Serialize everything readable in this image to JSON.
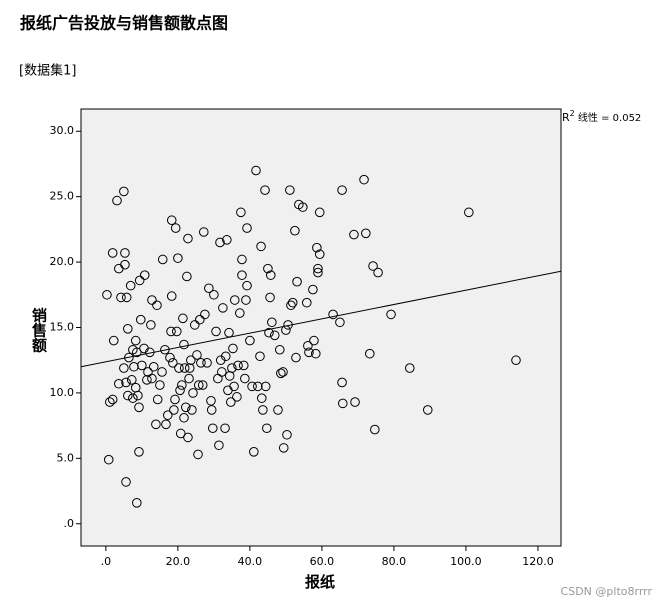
{
  "chart_data": {
    "type": "scatter",
    "title": "报纸广告投放与销售额散点图",
    "dataset_label": "[数据集1]",
    "x_label": "报纸",
    "y_label": "销售额",
    "fit_label": {
      "main": "R",
      "sup": "2",
      "rest": " 线性 = 0.052"
    },
    "xlim": [
      -6.9,
      126.4
    ],
    "ylim": [
      -1.7,
      31.7
    ],
    "xticks": [
      {
        "value": 0,
        "label": ".0"
      },
      {
        "value": 20,
        "label": "20.0"
      },
      {
        "value": 40,
        "label": "40.0"
      },
      {
        "value": 60,
        "label": "60.0"
      },
      {
        "value": 80,
        "label": "80.0"
      },
      {
        "value": 100,
        "label": "100.0"
      },
      {
        "value": 120,
        "label": "120.0"
      }
    ],
    "yticks": [
      {
        "value": 0,
        "label": ".0"
      },
      {
        "value": 5,
        "label": "5.0"
      },
      {
        "value": 10,
        "label": "10.0"
      },
      {
        "value": 15,
        "label": "15.0"
      },
      {
        "value": 20,
        "label": "20.0"
      },
      {
        "value": 25,
        "label": "25.0"
      },
      {
        "value": 30,
        "label": "30.0"
      }
    ],
    "grid": false,
    "color": "#000000",
    "plot_background": "#f0f0f0",
    "fit_line": {
      "x": [
        -6.9,
        126.4
      ],
      "y": [
        12.0,
        19.3
      ]
    },
    "x": [
      0.3,
      0.8,
      1.1,
      1.9,
      2.2,
      1.9,
      3.1,
      3.6,
      4.2,
      3.6,
      5.0,
      5.3,
      5.3,
      5.0,
      5.6,
      5.6,
      5.8,
      6.1,
      6.4,
      6.1,
      6.9,
      7.2,
      7.5,
      7.5,
      7.8,
      8.3,
      8.3,
      8.6,
      8.6,
      8.9,
      9.2,
      9.2,
      9.4,
      9.7,
      10.0,
      10.6,
      10.8,
      11.4,
      11.7,
      12.2,
      12.5,
      12.8,
      12.8,
      13.3,
      13.9,
      14.2,
      14.4,
      15.0,
      15.6,
      15.8,
      16.4,
      16.7,
      17.2,
      17.8,
      18.1,
      18.3,
      18.3,
      18.6,
      18.9,
      19.2,
      19.4,
      19.7,
      20.0,
      20.3,
      20.6,
      20.8,
      21.1,
      21.4,
      21.7,
      21.7,
      21.9,
      22.2,
      22.5,
      22.8,
      22.8,
      23.1,
      23.3,
      23.6,
      23.9,
      24.2,
      24.7,
      25.3,
      25.6,
      25.8,
      26.1,
      26.4,
      26.9,
      27.2,
      27.5,
      28.1,
      28.6,
      29.2,
      29.4,
      29.7,
      30.0,
      30.6,
      31.1,
      31.4,
      31.7,
      31.9,
      32.2,
      32.5,
      33.1,
      33.3,
      33.6,
      33.9,
      34.2,
      34.4,
      34.7,
      35.0,
      35.3,
      35.6,
      35.8,
      36.4,
      36.7,
      37.2,
      37.5,
      37.8,
      37.8,
      38.3,
      38.6,
      39.2,
      38.9,
      39.2,
      40.0,
      40.6,
      41.1,
      41.7,
      42.2,
      42.8,
      43.1,
      43.3,
      43.6,
      44.2,
      44.4,
      44.7,
      45.0,
      45.3,
      45.6,
      45.8,
      46.1,
      46.9,
      47.8,
      48.3,
      48.6,
      49.2,
      49.4,
      50.0,
      50.3,
      50.6,
      51.1,
      51.4,
      51.9,
      52.5,
      52.8,
      53.1,
      53.6,
      54.7,
      55.8,
      56.1,
      56.4,
      57.5,
      57.8,
      58.3,
      58.6,
      58.9,
      58.9,
      59.4,
      59.4,
      63.1,
      65.0,
      65.6,
      65.6,
      65.8,
      68.9,
      69.2,
      71.7,
      72.2,
      73.3,
      74.2,
      74.7,
      75.6,
      79.2,
      84.4,
      89.4,
      100.8,
      113.9
    ],
    "values": [
      17.5,
      4.9,
      9.3,
      20.7,
      14.0,
      9.5,
      24.7,
      19.5,
      17.3,
      10.7,
      25.4,
      20.7,
      19.8,
      11.9,
      10.8,
      3.2,
      17.3,
      14.9,
      12.7,
      9.8,
      18.2,
      11.0,
      9.6,
      13.3,
      12.0,
      10.4,
      14.0,
      13.1,
      1.6,
      9.8,
      5.5,
      8.9,
      18.6,
      15.6,
      12.1,
      13.4,
      19.0,
      11.0,
      11.6,
      13.1,
      15.2,
      17.1,
      11.1,
      12.0,
      7.6,
      16.7,
      9.5,
      10.6,
      11.6,
      20.2,
      13.3,
      7.6,
      8.3,
      12.7,
      14.7,
      23.2,
      17.4,
      12.3,
      8.7,
      9.5,
      22.6,
      14.7,
      20.3,
      11.9,
      10.2,
      6.9,
      10.6,
      15.7,
      13.7,
      8.1,
      11.9,
      8.9,
      18.9,
      21.8,
      6.6,
      11.1,
      11.9,
      12.5,
      8.7,
      10.0,
      15.2,
      12.9,
      5.3,
      10.6,
      15.6,
      12.3,
      10.6,
      22.3,
      16.0,
      12.3,
      18.0,
      9.4,
      8.7,
      7.3,
      17.5,
      14.7,
      11.1,
      6.0,
      21.5,
      12.5,
      11.6,
      16.5,
      7.3,
      12.8,
      21.7,
      10.2,
      14.6,
      11.3,
      9.3,
      11.9,
      13.4,
      10.5,
      17.1,
      9.7,
      12.1,
      16.1,
      23.8,
      20.2,
      19.0,
      12.1,
      11.1,
      22.6,
      17.1,
      18.2,
      14.0,
      10.5,
      5.5,
      27.0,
      10.5,
      12.8,
      21.2,
      9.6,
      8.7,
      25.5,
      10.5,
      7.3,
      19.5,
      14.6,
      17.3,
      19.0,
      15.4,
      14.4,
      8.7,
      13.3,
      11.5,
      11.6,
      5.8,
      14.8,
      6.8,
      15.2,
      25.5,
      16.7,
      16.9,
      22.4,
      12.7,
      18.5,
      24.4,
      24.2,
      16.9,
      13.6,
      13.1,
      17.9,
      14.0,
      13.0,
      21.1,
      19.5,
      19.2,
      20.6,
      23.8,
      16.0,
      15.4,
      25.5,
      10.8,
      9.2,
      22.1,
      9.3,
      26.3,
      22.2,
      13.0,
      19.7,
      7.2,
      19.2,
      16.0,
      11.9,
      8.7,
      23.8,
      12.5
    ]
  },
  "watermark": "CSDN @plto8rrrr"
}
